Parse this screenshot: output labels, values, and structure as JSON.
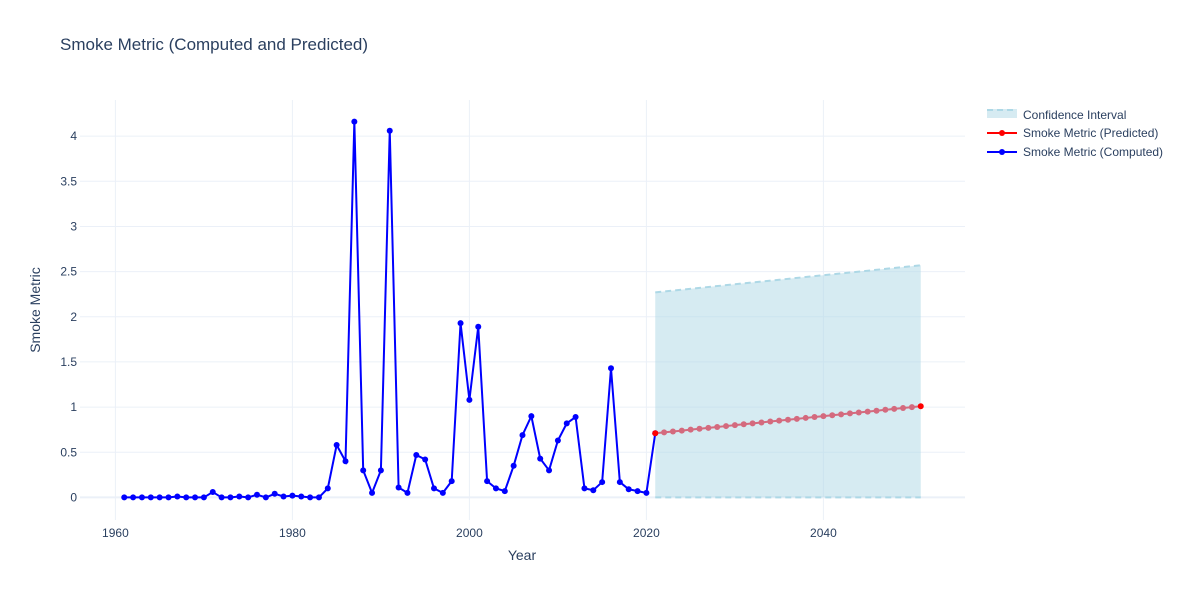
{
  "chart_data": {
    "type": "line",
    "title": "Smoke Metric (Computed and Predicted)",
    "xlabel": "Year",
    "ylabel": "Smoke Metric",
    "xlim": [
      1956,
      2056
    ],
    "ylim": [
      -0.25,
      4.4
    ],
    "xticks": [
      1960,
      1980,
      2000,
      2020,
      2040
    ],
    "yticks": [
      0,
      0.5,
      1,
      1.5,
      2,
      2.5,
      3,
      3.5,
      4
    ],
    "grid": true,
    "legend_position": "top-right",
    "colors": {
      "computed": "#0000ff",
      "predicted": "#ff0000",
      "predicted_marker": "#d46a7e",
      "ci_fill": "#add8e6",
      "ci_line": "#add8e6",
      "grid": "#ebf0f8"
    },
    "series": [
      {
        "name": "Smoke Metric (Computed)",
        "x": [
          1961,
          1962,
          1963,
          1964,
          1965,
          1966,
          1967,
          1968,
          1969,
          1970,
          1971,
          1972,
          1973,
          1974,
          1975,
          1976,
          1977,
          1978,
          1979,
          1980,
          1981,
          1982,
          1983,
          1984,
          1985,
          1986,
          1987,
          1988,
          1989,
          1990,
          1991,
          1992,
          1993,
          1994,
          1995,
          1996,
          1997,
          1998,
          1999,
          2000,
          2001,
          2002,
          2003,
          2004,
          2005,
          2006,
          2007,
          2008,
          2009,
          2010,
          2011,
          2012,
          2013,
          2014,
          2015,
          2016,
          2017,
          2018,
          2019,
          2020,
          2021
        ],
        "y": [
          0,
          0,
          0,
          0,
          0,
          0,
          0.01,
          0,
          0,
          0,
          0.06,
          0,
          0,
          0.01,
          0,
          0.03,
          0,
          0.04,
          0.01,
          0.02,
          0.01,
          0,
          0,
          0.1,
          0.58,
          0.4,
          4.16,
          0.3,
          0.05,
          0.3,
          4.06,
          0.11,
          0.05,
          0.47,
          0.42,
          0.1,
          0.05,
          0.18,
          1.93,
          1.08,
          1.89,
          0.18,
          0.1,
          0.07,
          0.35,
          0.69,
          0.9,
          0.43,
          0.3,
          0.63,
          0.82,
          0.89,
          0.1,
          0.08,
          0.17,
          1.43,
          0.17,
          0.09,
          0.07,
          0.05,
          0.71
        ]
      },
      {
        "name": "Smoke Metric (Predicted)",
        "x": [
          2021,
          2022,
          2023,
          2024,
          2025,
          2026,
          2027,
          2028,
          2029,
          2030,
          2031,
          2032,
          2033,
          2034,
          2035,
          2036,
          2037,
          2038,
          2039,
          2040,
          2041,
          2042,
          2043,
          2044,
          2045,
          2046,
          2047,
          2048,
          2049,
          2050,
          2051
        ],
        "y": [
          0.71,
          0.72,
          0.73,
          0.74,
          0.75,
          0.76,
          0.77,
          0.78,
          0.79,
          0.8,
          0.81,
          0.82,
          0.83,
          0.84,
          0.85,
          0.86,
          0.87,
          0.88,
          0.89,
          0.9,
          0.91,
          0.92,
          0.93,
          0.94,
          0.95,
          0.96,
          0.97,
          0.98,
          0.99,
          1.0,
          1.01
        ]
      },
      {
        "name": "Confidence Interval",
        "x_start": 2021,
        "x_end": 2051,
        "upper": [
          2.27,
          2.57
        ],
        "lower": [
          0,
          0
        ]
      }
    ],
    "legend": [
      "Confidence Interval",
      "Smoke Metric (Predicted)",
      "Smoke Metric (Computed)"
    ]
  }
}
